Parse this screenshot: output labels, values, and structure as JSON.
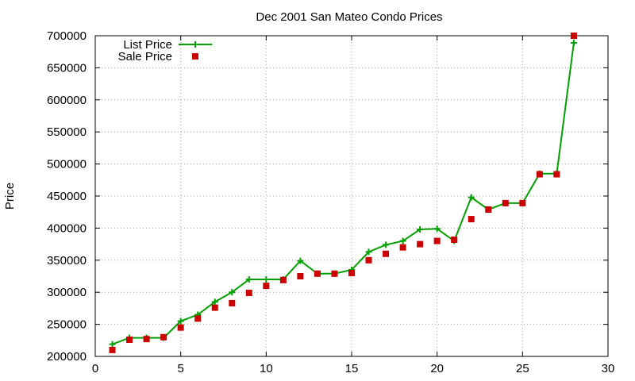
{
  "chart_data": {
    "type": "line",
    "title": "Dec 2001 San Mateo Condo Prices",
    "xlabel": "",
    "ylabel": "Price",
    "xlim": [
      0,
      30
    ],
    "ylim": [
      200000,
      700000
    ],
    "x_ticks": [
      "0",
      "5",
      "10",
      "15",
      "20",
      "25",
      "30"
    ],
    "y_ticks": [
      "200000",
      "250000",
      "300000",
      "350000",
      "400000",
      "450000",
      "500000",
      "550000",
      "600000",
      "650000",
      "700000"
    ],
    "grid": true,
    "legend_position": "top-left",
    "series": [
      {
        "name": "List Price",
        "style": "linespoints",
        "marker": "plus",
        "color": "#00a000",
        "x": [
          1,
          2,
          3,
          4,
          5,
          6,
          7,
          8,
          9,
          10,
          11,
          12,
          13,
          14,
          15,
          16,
          17,
          18,
          19,
          20,
          21,
          22,
          23,
          24,
          25,
          26,
          27,
          28
        ],
        "values": [
          219000,
          229000,
          229000,
          229000,
          255000,
          265000,
          285000,
          300000,
          320000,
          320000,
          320000,
          349000,
          329000,
          329000,
          335000,
          363000,
          374000,
          380000,
          398000,
          399000,
          380000,
          448000,
          429000,
          439000,
          439000,
          485000,
          485000,
          689000
        ]
      },
      {
        "name": "Sale Price",
        "style": "points",
        "marker": "square",
        "color": "#cc0000",
        "x": [
          1,
          2,
          3,
          4,
          5,
          6,
          7,
          8,
          9,
          10,
          11,
          12,
          13,
          14,
          15,
          16,
          17,
          18,
          19,
          20,
          21,
          22,
          23,
          24,
          25,
          26,
          27,
          28
        ],
        "values": [
          210000,
          226000,
          227000,
          230000,
          245000,
          259000,
          276000,
          283000,
          299000,
          310000,
          319000,
          325000,
          329000,
          329000,
          330000,
          350000,
          360000,
          370000,
          375000,
          380000,
          382000,
          414000,
          429000,
          439000,
          439000,
          484000,
          484000,
          700000
        ]
      }
    ]
  }
}
